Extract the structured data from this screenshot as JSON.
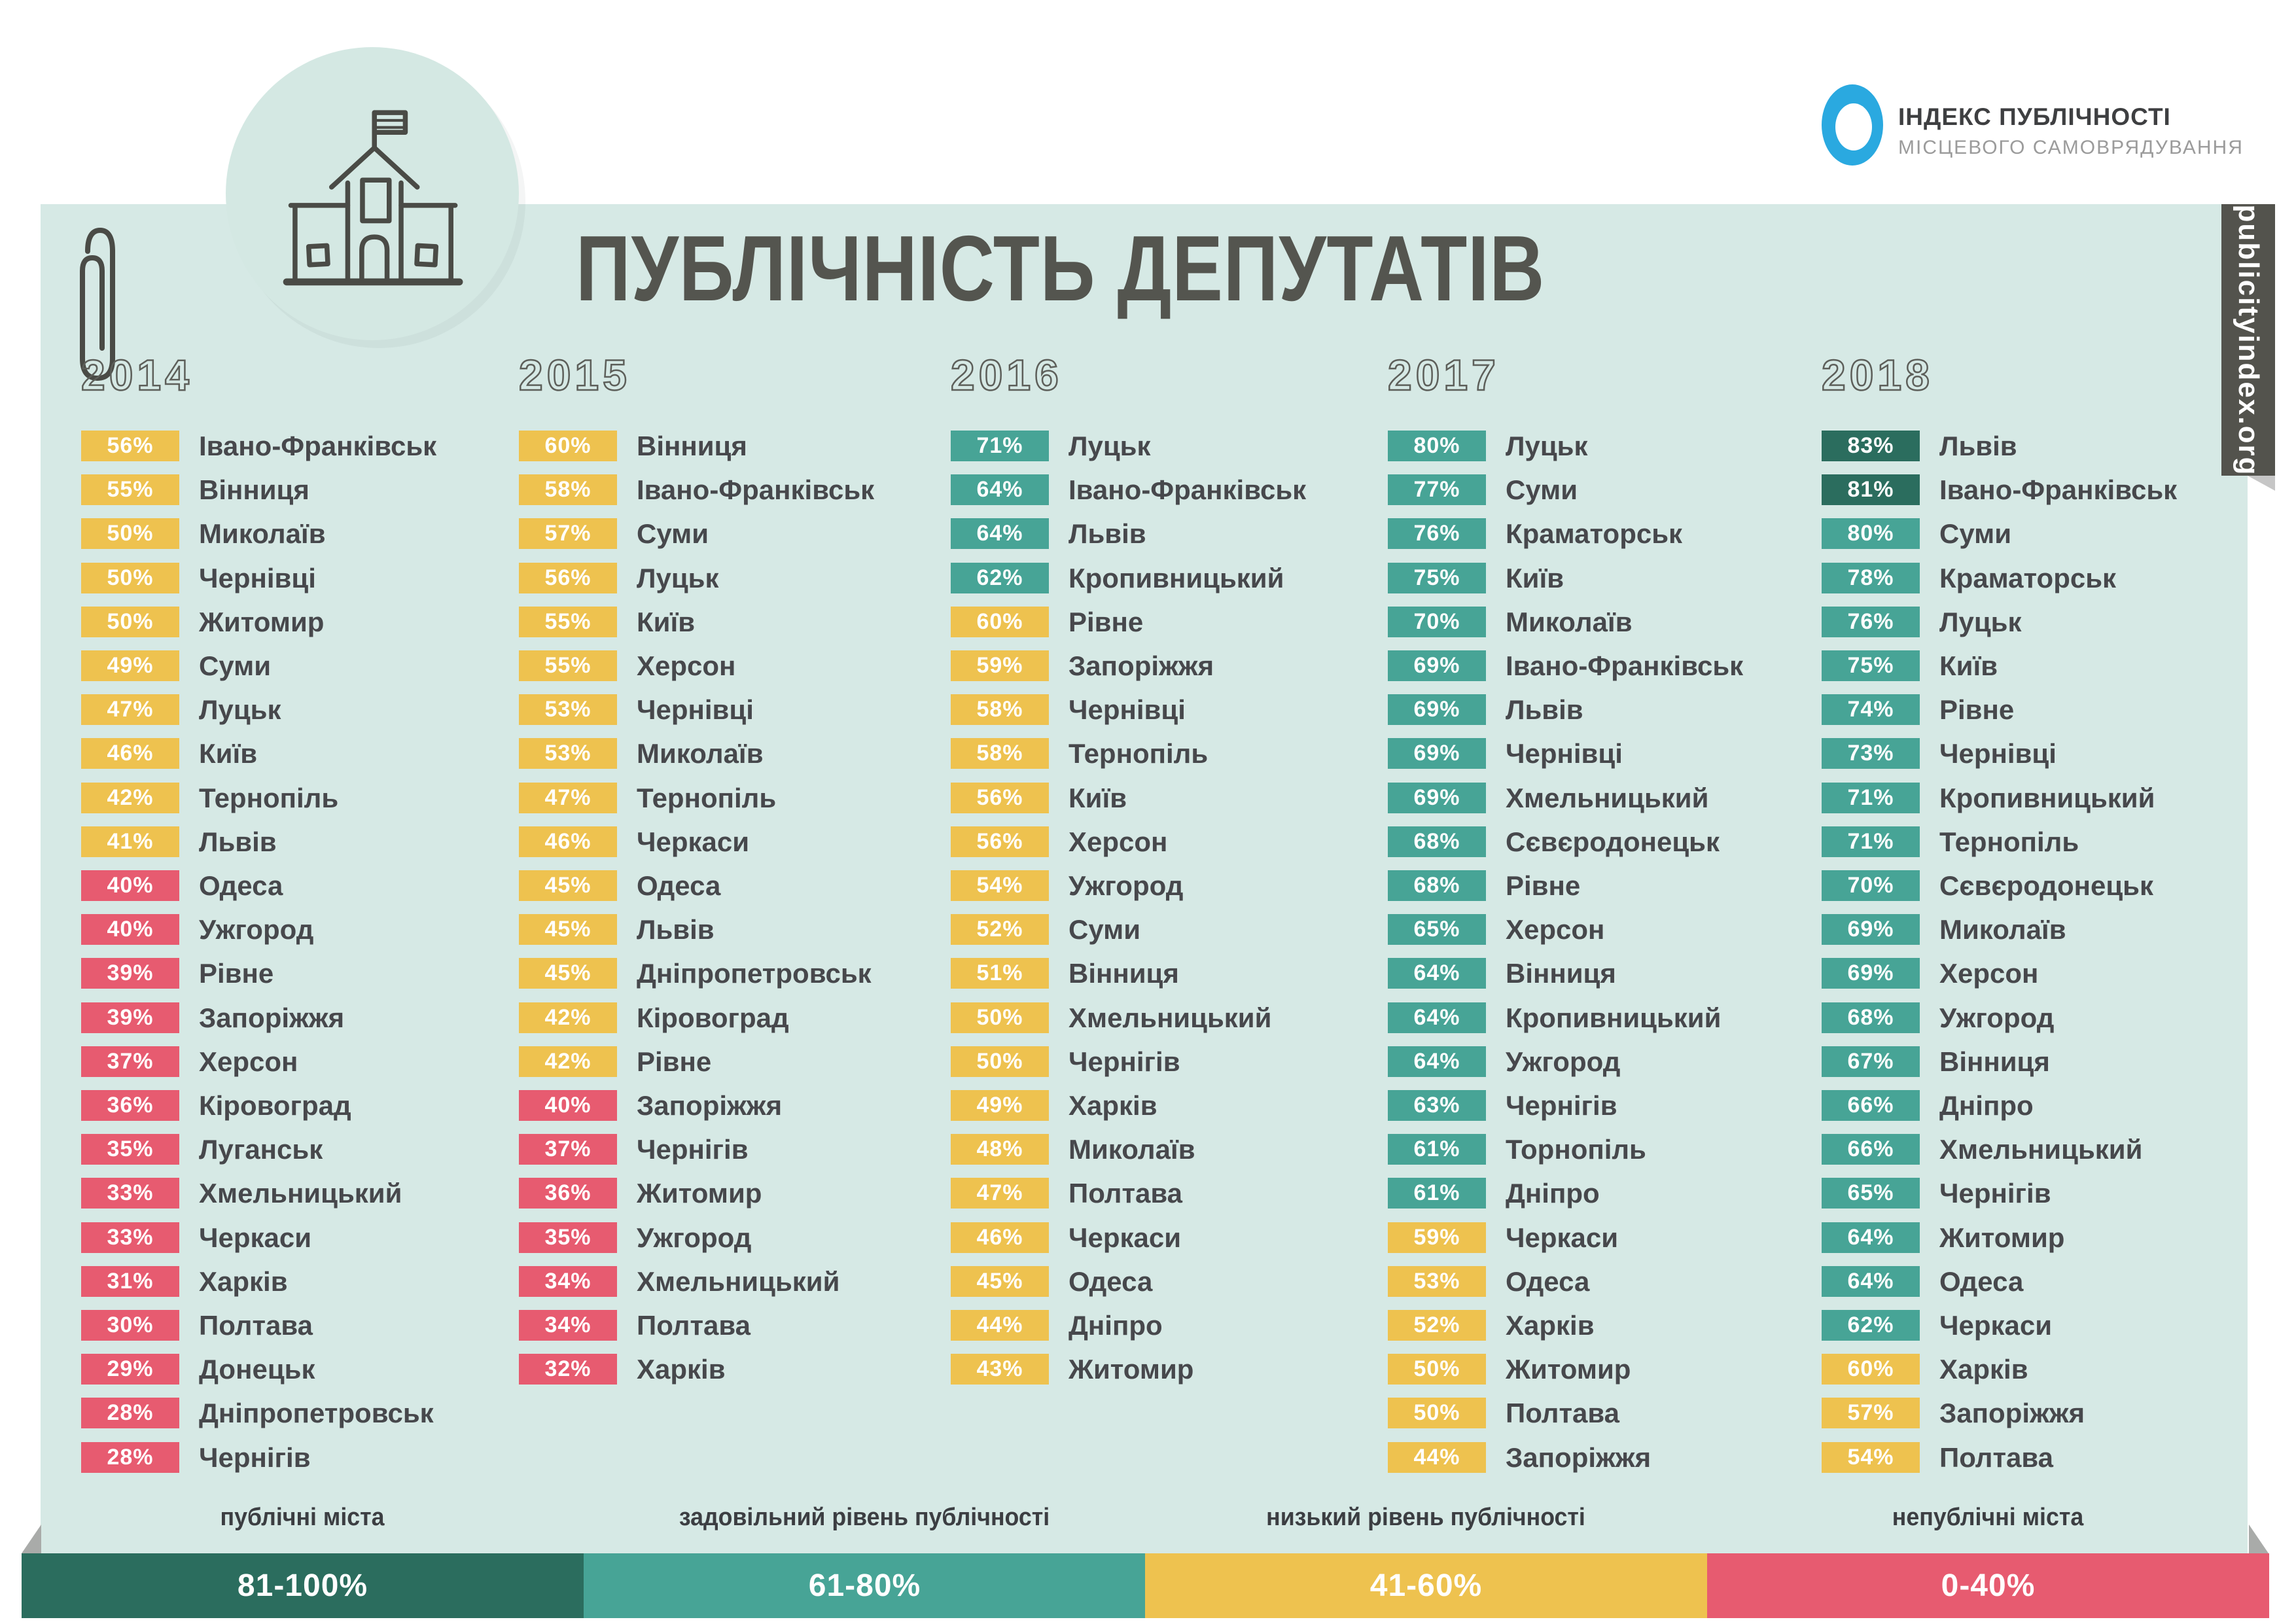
{
  "header": {
    "title": "ПУБЛІЧНІСТЬ ДЕПУТАТІВ",
    "logo": {
      "line1": "ІНДЕКС ПУБЛІЧНОСТІ",
      "line2": "МІСЦЕВОГО САМОВРЯДУВАННЯ",
      "mark_color": "#2aa9e0"
    },
    "ribbon_url": "publicityindex.org"
  },
  "icons": {
    "town_hall": "town-hall-sketch",
    "paperclip": "paperclip-sketch"
  },
  "chart_data": {
    "type": "table",
    "title": "ПУБЛІЧНІСТЬ ДЕПУТАТІВ",
    "value_unit": "%",
    "levels": {
      "high": {
        "min": 81,
        "max": 100,
        "color": "#2b6d5e"
      },
      "good": {
        "min": 61,
        "max": 80,
        "color": "#47a496"
      },
      "low": {
        "min": 41,
        "max": 60,
        "color": "#eec24f"
      },
      "bad": {
        "min": 0,
        "max": 40,
        "color": "#e75b70"
      }
    },
    "legend": [
      {
        "label": "публічні міста",
        "range": "81-100%",
        "level": "high",
        "color": "#2b6d5e"
      },
      {
        "label": "задовільний рівень публічності",
        "range": "61-80%",
        "level": "good",
        "color": "#47a496"
      },
      {
        "label": "низький рівень публічності",
        "range": "41-60%",
        "level": "low",
        "color": "#eec24f"
      },
      {
        "label": "непублічні міста",
        "range": "0-40%",
        "level": "bad",
        "color": "#e75b70"
      }
    ],
    "series": [
      {
        "year": "2014",
        "entries": [
          {
            "city": "Івано-Франківськ",
            "value": 56
          },
          {
            "city": "Вінниця",
            "value": 55
          },
          {
            "city": "Миколаїв",
            "value": 50
          },
          {
            "city": "Чернівці",
            "value": 50
          },
          {
            "city": "Житомир",
            "value": 50
          },
          {
            "city": "Суми",
            "value": 49
          },
          {
            "city": "Луцьк",
            "value": 47
          },
          {
            "city": "Київ",
            "value": 46
          },
          {
            "city": "Тернопіль",
            "value": 42
          },
          {
            "city": "Львів",
            "value": 41
          },
          {
            "city": "Одеса",
            "value": 40
          },
          {
            "city": "Ужгород",
            "value": 40
          },
          {
            "city": "Рівне",
            "value": 39
          },
          {
            "city": "Запоріжжя",
            "value": 39
          },
          {
            "city": "Херсон",
            "value": 37
          },
          {
            "city": "Кіровоград",
            "value": 36
          },
          {
            "city": "Луганськ",
            "value": 35
          },
          {
            "city": "Хмельницький",
            "value": 33
          },
          {
            "city": "Черкаси",
            "value": 33
          },
          {
            "city": "Харків",
            "value": 31
          },
          {
            "city": "Полтава",
            "value": 30
          },
          {
            "city": "Донецьк",
            "value": 29
          },
          {
            "city": "Дніпропетровськ",
            "value": 28
          },
          {
            "city": "Чернігів",
            "value": 28
          }
        ]
      },
      {
        "year": "2015",
        "entries": [
          {
            "city": "Вінниця",
            "value": 60
          },
          {
            "city": "Івано-Франківськ",
            "value": 58
          },
          {
            "city": "Суми",
            "value": 57
          },
          {
            "city": "Луцьк",
            "value": 56
          },
          {
            "city": "Київ",
            "value": 55
          },
          {
            "city": "Херсон",
            "value": 55
          },
          {
            "city": "Чернівці",
            "value": 53
          },
          {
            "city": "Миколаїв",
            "value": 53
          },
          {
            "city": "Тернопіль",
            "value": 47
          },
          {
            "city": "Черкаси",
            "value": 46
          },
          {
            "city": "Одеса",
            "value": 45
          },
          {
            "city": "Львів",
            "value": 45
          },
          {
            "city": "Дніпропетровськ",
            "value": 45
          },
          {
            "city": "Кіровоград",
            "value": 42
          },
          {
            "city": "Рівне",
            "value": 42
          },
          {
            "city": "Запоріжжя",
            "value": 40
          },
          {
            "city": "Чернігів",
            "value": 37
          },
          {
            "city": "Житомир",
            "value": 36
          },
          {
            "city": "Ужгород",
            "value": 35
          },
          {
            "city": "Хмельницький",
            "value": 34
          },
          {
            "city": "Полтава",
            "value": 34
          },
          {
            "city": "Харків",
            "value": 32
          }
        ]
      },
      {
        "year": "2016",
        "entries": [
          {
            "city": "Луцьк",
            "value": 71
          },
          {
            "city": "Івано-Франківськ",
            "value": 64
          },
          {
            "city": "Львів",
            "value": 64
          },
          {
            "city": "Кропивницький",
            "value": 62
          },
          {
            "city": "Рівне",
            "value": 60
          },
          {
            "city": "Запоріжжя",
            "value": 59
          },
          {
            "city": "Чернівці",
            "value": 58
          },
          {
            "city": "Тернопіль",
            "value": 58
          },
          {
            "city": "Київ",
            "value": 56
          },
          {
            "city": "Херсон",
            "value": 56
          },
          {
            "city": "Ужгород",
            "value": 54
          },
          {
            "city": "Суми",
            "value": 52
          },
          {
            "city": "Вінниця",
            "value": 51
          },
          {
            "city": "Хмельницький",
            "value": 50
          },
          {
            "city": "Чернігів",
            "value": 50
          },
          {
            "city": "Харків",
            "value": 49
          },
          {
            "city": "Миколаїв",
            "value": 48
          },
          {
            "city": "Полтава",
            "value": 47
          },
          {
            "city": "Черкаси",
            "value": 46
          },
          {
            "city": "Одеса",
            "value": 45
          },
          {
            "city": "Дніпро",
            "value": 44
          },
          {
            "city": "Житомир",
            "value": 43
          }
        ]
      },
      {
        "year": "2017",
        "entries": [
          {
            "city": "Луцьк",
            "value": 80
          },
          {
            "city": "Суми",
            "value": 77
          },
          {
            "city": "Краматорськ",
            "value": 76
          },
          {
            "city": "Київ",
            "value": 75
          },
          {
            "city": "Миколаїв",
            "value": 70
          },
          {
            "city": "Івано-Франківськ",
            "value": 69
          },
          {
            "city": "Львів",
            "value": 69
          },
          {
            "city": "Чернівці",
            "value": 69
          },
          {
            "city": "Хмельницький",
            "value": 69
          },
          {
            "city": "Сєвєродонецьк",
            "value": 68
          },
          {
            "city": "Рівне",
            "value": 68
          },
          {
            "city": "Херсон",
            "value": 65
          },
          {
            "city": "Вінниця",
            "value": 64
          },
          {
            "city": "Кропивницький",
            "value": 64
          },
          {
            "city": "Ужгород",
            "value": 64
          },
          {
            "city": "Чернігів",
            "value": 63
          },
          {
            "city": "Торнопіль",
            "value": 61
          },
          {
            "city": "Дніпро",
            "value": 61
          },
          {
            "city": "Черкаси",
            "value": 59
          },
          {
            "city": "Одеса",
            "value": 53
          },
          {
            "city": "Харків",
            "value": 52
          },
          {
            "city": "Житомир",
            "value": 50
          },
          {
            "city": "Полтава",
            "value": 50
          },
          {
            "city": "Запоріжжя",
            "value": 44
          }
        ]
      },
      {
        "year": "2018",
        "entries": [
          {
            "city": "Львів",
            "value": 83
          },
          {
            "city": "Івано-Франківськ",
            "value": 81
          },
          {
            "city": "Суми",
            "value": 80
          },
          {
            "city": "Краматорськ",
            "value": 78
          },
          {
            "city": "Луцьк",
            "value": 76
          },
          {
            "city": "Київ",
            "value": 75
          },
          {
            "city": "Рівне",
            "value": 74
          },
          {
            "city": "Чернівці",
            "value": 73
          },
          {
            "city": "Кропивницький",
            "value": 71
          },
          {
            "city": "Тернопіль",
            "value": 71
          },
          {
            "city": "Сєвєродонецьк",
            "value": 70
          },
          {
            "city": "Миколаїв",
            "value": 69
          },
          {
            "city": "Херсон",
            "value": 69
          },
          {
            "city": "Ужгород",
            "value": 68
          },
          {
            "city": "Вінниця",
            "value": 67
          },
          {
            "city": "Дніпро",
            "value": 66
          },
          {
            "city": "Хмельницький",
            "value": 66
          },
          {
            "city": "Чернігів",
            "value": 65
          },
          {
            "city": "Житомир",
            "value": 64
          },
          {
            "city": "Одеса",
            "value": 64
          },
          {
            "city": "Черкаси",
            "value": 62
          },
          {
            "city": "Харків",
            "value": 60
          },
          {
            "city": "Запоріжжя",
            "value": 57
          },
          {
            "city": "Полтава",
            "value": 54
          }
        ]
      }
    ]
  }
}
